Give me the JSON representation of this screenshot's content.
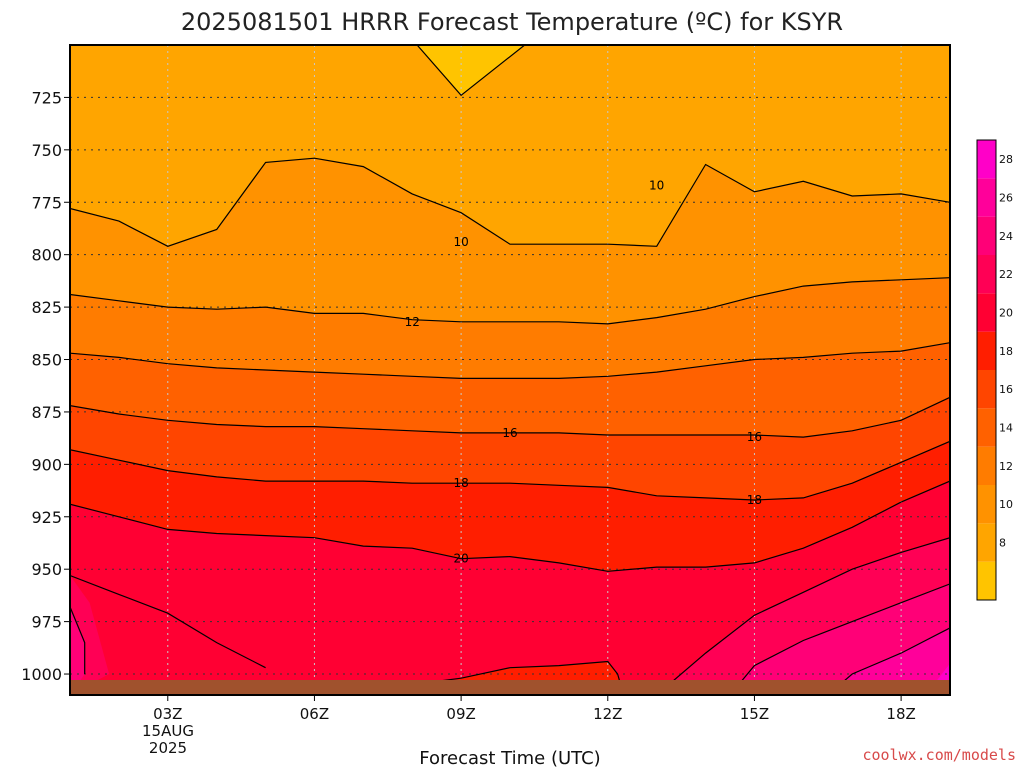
{
  "chart_data": {
    "type": "heatmap",
    "title": "2025081501 HRRR Forecast Temperature (ºC) for KSYR",
    "xlabel": "Forecast Time (UTC)",
    "ylabel": "",
    "x_ticks": [
      "03Z",
      "06Z",
      "09Z",
      "12Z",
      "15Z",
      "18Z"
    ],
    "x_date_label": [
      "15AUG",
      "2025"
    ],
    "y_ticks": [
      "725",
      "750",
      "775",
      "800",
      "825",
      "850",
      "875",
      "900",
      "925",
      "950",
      "975",
      "1000"
    ],
    "xlim_hours": [
      1,
      19
    ],
    "ylim_hpa": [
      700,
      1010
    ],
    "colorbar_levels": [
      "8",
      "10",
      "12",
      "14",
      "16",
      "18",
      "20",
      "22",
      "24",
      "26",
      "28"
    ],
    "colorbar_colors": [
      "#FFC400",
      "#FFA500",
      "#FF9200",
      "#FF7C00",
      "#FF6100",
      "#FF4500",
      "#FF1E00",
      "#FF0033",
      "#FF0055",
      "#FF0077",
      "#FF009A",
      "#FF00C8"
    ],
    "contour_labels": [
      {
        "text": "10",
        "hour": 9.0,
        "hpa": 794
      },
      {
        "text": "10",
        "hour": 13.0,
        "hpa": 767
      },
      {
        "text": "12",
        "hour": 8.0,
        "hpa": 832
      },
      {
        "text": "16",
        "hour": 10.0,
        "hpa": 885
      },
      {
        "text": "16",
        "hour": 15.0,
        "hpa": 887
      },
      {
        "text": "18",
        "hour": 9.0,
        "hpa": 909
      },
      {
        "text": "18",
        "hour": 15.0,
        "hpa": 917
      },
      {
        "text": "20",
        "hour": 9.0,
        "hpa": 945
      }
    ]
  },
  "credit": "coolwx.com/models"
}
